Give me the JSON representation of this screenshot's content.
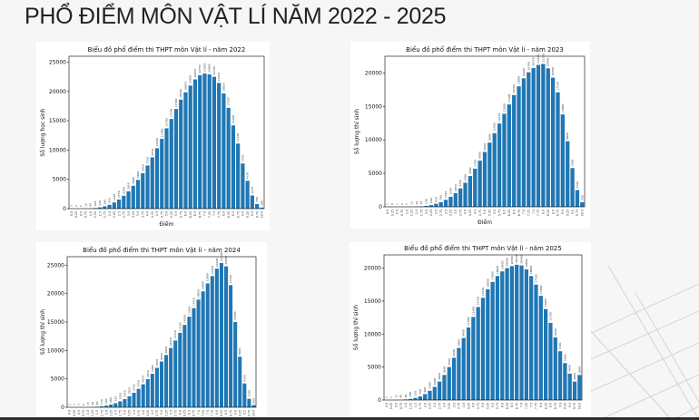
{
  "slide": {
    "title": "PHỔ ĐIỂM MÔN VẬT LÍ NĂM 2022 - 2025"
  },
  "colors": {
    "bar": "#1f77b4",
    "background": "#f6f6f6",
    "title": "#222222"
  },
  "chart_data": [
    {
      "type": "bar",
      "title": "Biểu đồ phổ điểm thi THPT môn Vật lí - năm 2022",
      "xlabel": "Điểm",
      "ylabel": "Số lượng học sinh",
      "ylim": [
        0,
        26000
      ],
      "yticks": [
        0,
        5000,
        10000,
        15000,
        20000,
        25000
      ],
      "grid": false,
      "categories": [
        "0.0",
        "0.25",
        "0.5",
        "0.75",
        "1.0",
        "1.25",
        "1.5",
        "1.75",
        "2.0",
        "2.25",
        "2.5",
        "2.75",
        "3.0",
        "3.25",
        "3.5",
        "3.75",
        "4.0",
        "4.25",
        "4.5",
        "4.75",
        "5.0",
        "5.25",
        "5.5",
        "5.75",
        "6.0",
        "6.25",
        "6.5",
        "6.75",
        "7.0",
        "7.25",
        "7.5",
        "7.75",
        "8.0",
        "8.25",
        "8.5",
        "8.75",
        "9.0",
        "9.25",
        "9.5",
        "9.75",
        "10.0"
      ],
      "values": [
        3,
        2,
        5,
        12,
        40,
        100,
        220,
        390,
        650,
        1050,
        1550,
        2200,
        2950,
        3900,
        4900,
        6050,
        7350,
        8750,
        10300,
        11900,
        13700,
        15300,
        17000,
        18600,
        19850,
        21000,
        22050,
        22750,
        23050,
        22900,
        22500,
        21450,
        19650,
        17200,
        14200,
        11100,
        7700,
        4750,
        2250,
        780,
        180
      ]
    },
    {
      "type": "bar",
      "title": "Biểu đồ phổ điểm thi THPT môn Vật lí - năm 2023",
      "xlabel": "Điểm",
      "ylabel": "Số lượng thí sinh",
      "ylim": [
        0,
        22500
      ],
      "yticks": [
        0,
        5000,
        10000,
        15000,
        20000
      ],
      "grid": false,
      "categories": [
        "0.0",
        "0.25",
        "0.5",
        "0.75",
        "1.0",
        "1.25",
        "1.5",
        "1.75",
        "2.0",
        "2.25",
        "2.5",
        "2.75",
        "3.0",
        "3.25",
        "3.5",
        "3.75",
        "4.0",
        "4.25",
        "4.5",
        "4.75",
        "5.0",
        "5.25",
        "5.5",
        "5.75",
        "6.0",
        "6.25",
        "6.5",
        "6.75",
        "7.0",
        "7.25",
        "7.5",
        "7.75",
        "8.0",
        "8.25",
        "8.5",
        "8.75",
        "9.0",
        "9.25",
        "9.5",
        "9.75",
        "10.0"
      ],
      "values": [
        1,
        0,
        1,
        2,
        5,
        12,
        30,
        70,
        140,
        260,
        450,
        700,
        1050,
        1500,
        2050,
        2750,
        3600,
        4600,
        5700,
        6900,
        8200,
        9600,
        11000,
        12450,
        13900,
        15300,
        16700,
        18000,
        19200,
        20100,
        20750,
        21200,
        21350,
        20700,
        19300,
        17100,
        13800,
        9800,
        5800,
        2500,
        700
      ]
    },
    {
      "type": "bar",
      "title": "Biểu đồ phổ điểm thi THPT môn Vật lí - năm 2024",
      "xlabel": "",
      "ylabel": "Số lượng thí sinh",
      "ylim": [
        0,
        26500
      ],
      "yticks": [
        0,
        5000,
        10000,
        15000,
        20000,
        25000
      ],
      "grid": false,
      "categories": [
        "0.0",
        "0.25",
        "0.5",
        "0.75",
        "1.0",
        "1.25",
        "1.5",
        "1.75",
        "2.0",
        "2.25",
        "2.5",
        "2.75",
        "3.0",
        "3.25",
        "3.5",
        "3.75",
        "4.0",
        "4.25",
        "4.5",
        "4.75",
        "5.0",
        "5.25",
        "5.5",
        "5.75",
        "6.0",
        "6.25",
        "6.5",
        "6.75",
        "7.0",
        "7.25",
        "7.5",
        "7.75",
        "8.0",
        "8.25",
        "8.5",
        "8.75",
        "9.0",
        "9.25",
        "9.5",
        "9.75",
        "10.0"
      ],
      "values": [
        2,
        1,
        3,
        6,
        15,
        40,
        90,
        170,
        300,
        480,
        720,
        1050,
        1450,
        1950,
        2550,
        3250,
        4050,
        4950,
        5900,
        6950,
        8050,
        9200,
        10450,
        11750,
        13100,
        14500,
        15950,
        17450,
        18950,
        20400,
        21800,
        23100,
        24400,
        25400,
        24800,
        21500,
        15000,
        8900,
        4200,
        1500,
        400
      ]
    },
    {
      "type": "bar",
      "title": "Biểu đồ phổ điểm thi THPT môn Vật lí - năm 2025",
      "xlabel": "",
      "ylabel": "Số lượng thí sinh",
      "ylim": [
        0,
        22000
      ],
      "yticks": [
        0,
        5000,
        10000,
        15000,
        20000
      ],
      "grid": false,
      "categories": [
        "0.0",
        "0.25",
        "0.5",
        "0.75",
        "1.0",
        "1.25",
        "1.5",
        "1.75",
        "2.0",
        "2.25",
        "2.5",
        "2.75",
        "3.0",
        "3.25",
        "3.5",
        "3.75",
        "4.0",
        "4.25",
        "4.5",
        "4.75",
        "5.0",
        "5.25",
        "5.5",
        "5.75",
        "6.0",
        "6.25",
        "6.5",
        "6.75",
        "7.0",
        "7.25",
        "7.5",
        "7.75",
        "8.0",
        "8.25",
        "8.5",
        "8.75",
        "9.0",
        "9.25",
        "9.5",
        "9.75",
        "10.0"
      ],
      "values": [
        2,
        5,
        15,
        40,
        90,
        180,
        330,
        560,
        900,
        1400,
        2000,
        2800,
        3800,
        5000,
        6400,
        7900,
        9400,
        11000,
        12600,
        14100,
        15500,
        16800,
        17900,
        18800,
        19500,
        20000,
        20300,
        20500,
        20400,
        19800,
        18800,
        17500,
        15800,
        13800,
        11700,
        9500,
        7400,
        5600,
        4000,
        2800,
        3800
      ]
    }
  ]
}
